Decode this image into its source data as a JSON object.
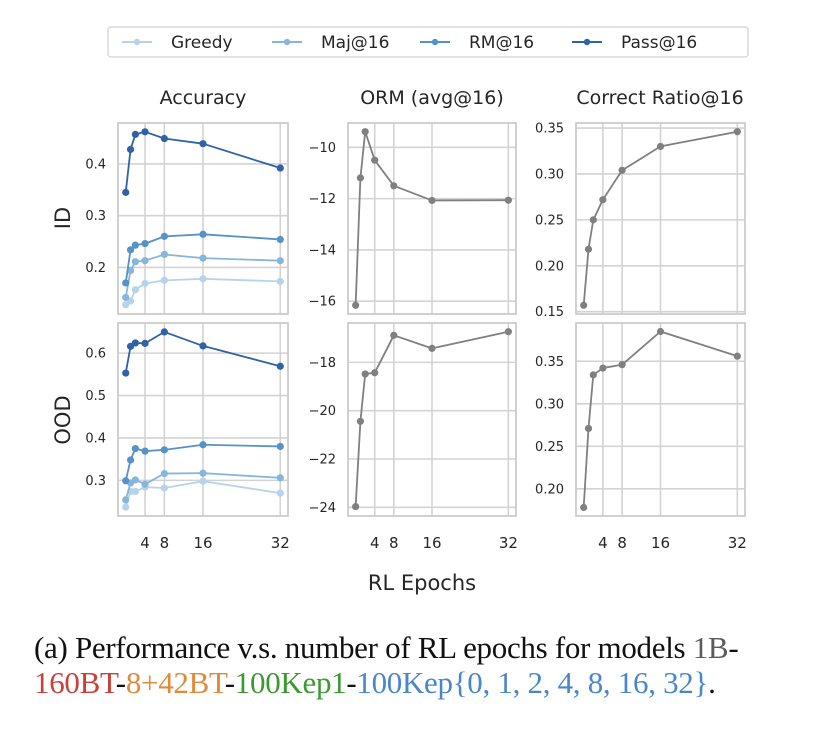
{
  "figure": {
    "xlabel": "RL Epochs",
    "row_labels": [
      "ID",
      "OOD"
    ],
    "col_titles": [
      "Accuracy",
      "ORM (avg@16)",
      "Correct Ratio@16"
    ]
  },
  "legend": {
    "placement": "top-center",
    "entries": [
      {
        "name": "Greedy",
        "color": "#b6d3ea"
      },
      {
        "name": "Maj@16",
        "color": "#86b6dc"
      },
      {
        "name": "RM@16",
        "color": "#5592c8"
      },
      {
        "name": "Pass@16",
        "color": "#2f62a6"
      }
    ]
  },
  "chart_data": [
    {
      "type": "line",
      "id": "acc-id",
      "title": "Accuracy",
      "ylabel": "ID",
      "xlabel": "",
      "x": [
        0,
        1,
        2,
        4,
        8,
        16,
        32
      ],
      "xlim": [
        -1.6,
        33.6
      ],
      "xticks": [
        4,
        8,
        16,
        32
      ],
      "xticklabels": [],
      "ylim": [
        0.11,
        0.479
      ],
      "yticks": [
        0.2,
        0.3,
        0.4
      ],
      "yticklabels": [
        "0.2",
        "0.3",
        "0.4"
      ],
      "grid": true,
      "series": [
        {
          "name": "Greedy",
          "color": "#b6d3ea",
          "values": [
            0.128,
            0.135,
            0.157,
            0.169,
            0.175,
            0.178,
            0.173
          ]
        },
        {
          "name": "Maj@16",
          "color": "#86b6dc",
          "values": [
            0.142,
            0.194,
            0.211,
            0.213,
            0.225,
            0.218,
            0.213
          ]
        },
        {
          "name": "RM@16",
          "color": "#5592c8",
          "values": [
            0.17,
            0.234,
            0.243,
            0.246,
            0.26,
            0.264,
            0.254
          ]
        },
        {
          "name": "Pass@16",
          "color": "#2f62a6",
          "values": [
            0.345,
            0.428,
            0.457,
            0.462,
            0.449,
            0.439,
            0.392
          ]
        }
      ]
    },
    {
      "type": "line",
      "id": "orm-id",
      "title": "ORM (avg@16)",
      "ylabel": "",
      "xlabel": "",
      "x": [
        0,
        1,
        2,
        4,
        8,
        16,
        32
      ],
      "xlim": [
        -1.6,
        33.6
      ],
      "xticks": [
        4,
        8,
        16,
        32
      ],
      "xticklabels": [],
      "ylim": [
        -16.5,
        -9.05
      ],
      "yticks": [
        -16,
        -14,
        -12,
        -10
      ],
      "yticklabels": [
        "−16",
        "−14",
        "−12",
        "−10"
      ],
      "grid": true,
      "series": [
        {
          "name": "ORM",
          "color": "#808080",
          "values": [
            -16.16,
            -11.19,
            -9.39,
            -10.5,
            -11.5,
            -12.07,
            -12.06
          ]
        }
      ]
    },
    {
      "type": "line",
      "id": "cr-id",
      "title": "Correct Ratio@16",
      "ylabel": "",
      "xlabel": "",
      "x": [
        0,
        1,
        2,
        4,
        8,
        16,
        32
      ],
      "xlim": [
        -1.6,
        33.6
      ],
      "xticks": [
        4,
        8,
        16,
        32
      ],
      "xticklabels": [],
      "ylim": [
        0.1475,
        0.3555
      ],
      "yticks": [
        0.15,
        0.2,
        0.25,
        0.3,
        0.35
      ],
      "yticklabels": [
        "0.15",
        "0.20",
        "0.25",
        "0.30",
        "0.35"
      ],
      "grid": true,
      "series": [
        {
          "name": "Correct Ratio",
          "color": "#808080",
          "values": [
            0.157,
            0.218,
            0.25,
            0.272,
            0.304,
            0.33,
            0.346
          ]
        }
      ]
    },
    {
      "type": "line",
      "id": "acc-ood",
      "title": "",
      "ylabel": "OOD",
      "xlabel": "",
      "x": [
        0,
        1,
        2,
        4,
        8,
        16,
        32
      ],
      "xlim": [
        -1.6,
        33.6
      ],
      "xticks": [
        4,
        8,
        16,
        32
      ],
      "xticklabels": [
        "4",
        "8",
        "16",
        "32"
      ],
      "ylim": [
        0.216,
        0.671
      ],
      "yticks": [
        0.3,
        0.4,
        0.5,
        0.6
      ],
      "yticklabels": [
        "0.3",
        "0.4",
        "0.5",
        "0.6"
      ],
      "grid": true,
      "series": [
        {
          "name": "Greedy",
          "color": "#b6d3ea",
          "values": [
            0.237,
            0.274,
            0.274,
            0.284,
            0.282,
            0.298,
            0.27
          ]
        },
        {
          "name": "Maj@16",
          "color": "#86b6dc",
          "values": [
            0.254,
            0.294,
            0.301,
            0.291,
            0.316,
            0.317,
            0.306
          ]
        },
        {
          "name": "RM@16",
          "color": "#5592c8",
          "values": [
            0.299,
            0.348,
            0.375,
            0.369,
            0.372,
            0.384,
            0.38
          ]
        },
        {
          "name": "Pass@16",
          "color": "#2f62a6",
          "values": [
            0.553,
            0.616,
            0.624,
            0.623,
            0.65,
            0.617,
            0.569
          ]
        }
      ]
    },
    {
      "type": "line",
      "id": "orm-ood",
      "title": "",
      "ylabel": "",
      "xlabel": "",
      "x": [
        0,
        1,
        2,
        4,
        8,
        16,
        32
      ],
      "xlim": [
        -1.6,
        33.6
      ],
      "xticks": [
        4,
        8,
        16,
        32
      ],
      "xticklabels": [
        "4",
        "8",
        "16",
        "32"
      ],
      "ylim": [
        -24.36,
        -16.37
      ],
      "yticks": [
        -24,
        -22,
        -20,
        -18
      ],
      "yticklabels": [
        "−24",
        "−22",
        "−20",
        "−18"
      ],
      "grid": true,
      "series": [
        {
          "name": "ORM",
          "color": "#808080",
          "values": [
            -23.97,
            -20.44,
            -18.48,
            -18.43,
            -16.88,
            -17.42,
            -16.73
          ]
        }
      ]
    },
    {
      "type": "line",
      "id": "cr-ood",
      "title": "",
      "ylabel": "",
      "xlabel": "",
      "x": [
        0,
        1,
        2,
        4,
        8,
        16,
        32
      ],
      "xlim": [
        -1.6,
        33.6
      ],
      "xticks": [
        4,
        8,
        16,
        32
      ],
      "xticklabels": [
        "4",
        "8",
        "16",
        "32"
      ],
      "ylim": [
        0.168,
        0.395
      ],
      "yticks": [
        0.2,
        0.25,
        0.3,
        0.35
      ],
      "yticklabels": [
        "0.20",
        "0.25",
        "0.30",
        "0.35"
      ],
      "grid": true,
      "series": [
        {
          "name": "Correct Ratio",
          "color": "#808080",
          "values": [
            0.178,
            0.271,
            0.334,
            0.342,
            0.346,
            0.385,
            0.356
          ]
        }
      ]
    }
  ],
  "caption": {
    "segments": [
      {
        "text": "(a) Performance v.s. number of RL epochs for models ",
        "color": "#111111"
      },
      {
        "text": "1B",
        "color": "#5c5c5c"
      },
      {
        "text": "-",
        "color": "#111111"
      },
      {
        "text": "160BT",
        "color": "#c8423b"
      },
      {
        "text": "-",
        "color": "#111111"
      },
      {
        "text": "8+42BT",
        "color": "#e08a3c"
      },
      {
        "text": "-",
        "color": "#111111"
      },
      {
        "text": "100Kep1",
        "color": "#3a9a31"
      },
      {
        "text": "-",
        "color": "#111111"
      },
      {
        "text": "100Kep{0, 1, 2, 4, 8, 16, 32}",
        "color": "#4a87c9"
      },
      {
        "text": ".",
        "color": "#111111"
      }
    ]
  }
}
